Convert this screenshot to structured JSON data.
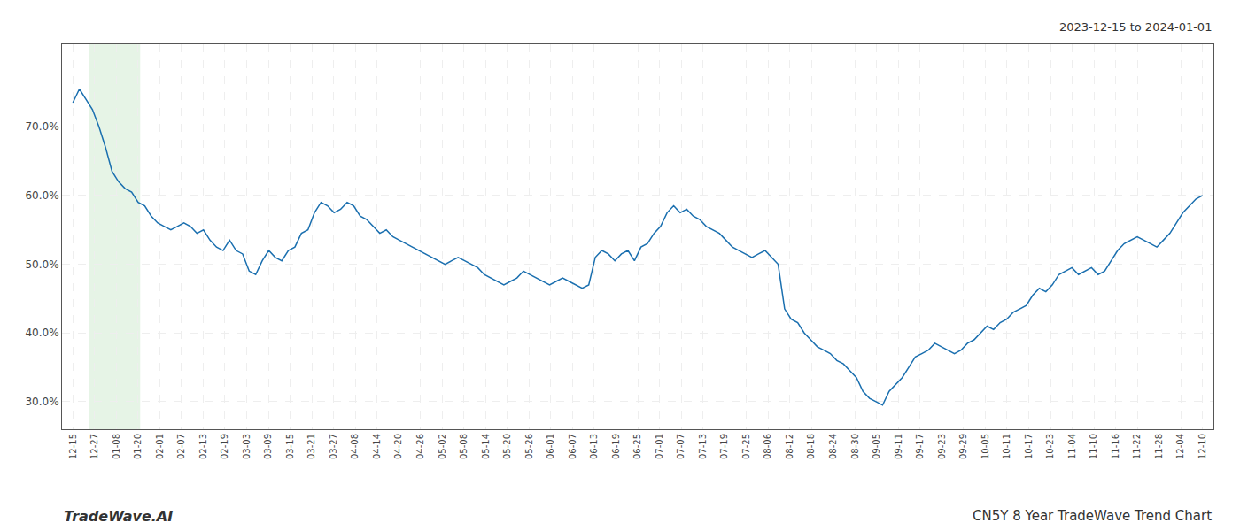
{
  "chart_data": {
    "type": "line",
    "title": "CN5Y 8 Year TradeWave Trend Chart",
    "subtitle": "2023-12-15 to 2024-01-01",
    "annotations": [
      {
        "text": "TradeWave.AI"
      }
    ],
    "color": "#1a6faf",
    "grid": true,
    "xlim": [
      -0.5,
      52.5
    ],
    "xticks": [
      {
        "value": 0,
        "label": "12-15"
      },
      {
        "value": 1,
        "label": "12-27"
      },
      {
        "value": 2,
        "label": "01-08"
      },
      {
        "value": 3,
        "label": "01-20"
      },
      {
        "value": 4,
        "label": "02-01"
      },
      {
        "value": 5,
        "label": "02-07"
      },
      {
        "value": 6,
        "label": "02-13"
      },
      {
        "value": 7,
        "label": "02-19"
      },
      {
        "value": 8,
        "label": "03-03"
      },
      {
        "value": 9,
        "label": "03-09"
      },
      {
        "value": 10,
        "label": "03-15"
      },
      {
        "value": 11,
        "label": "03-21"
      },
      {
        "value": 12,
        "label": "03-27"
      },
      {
        "value": 13,
        "label": "04-08"
      },
      {
        "value": 14,
        "label": "04-14"
      },
      {
        "value": 15,
        "label": "04-20"
      },
      {
        "value": 16,
        "label": "04-26"
      },
      {
        "value": 17,
        "label": "05-02"
      },
      {
        "value": 18,
        "label": "05-08"
      },
      {
        "value": 19,
        "label": "05-14"
      },
      {
        "value": 20,
        "label": "05-20"
      },
      {
        "value": 21,
        "label": "05-26"
      },
      {
        "value": 22,
        "label": "06-01"
      },
      {
        "value": 23,
        "label": "06-07"
      },
      {
        "value": 24,
        "label": "06-13"
      },
      {
        "value": 25,
        "label": "06-19"
      },
      {
        "value": 26,
        "label": "06-25"
      },
      {
        "value": 27,
        "label": "07-01"
      },
      {
        "value": 28,
        "label": "07-07"
      },
      {
        "value": 29,
        "label": "07-13"
      },
      {
        "value": 30,
        "label": "07-19"
      },
      {
        "value": 31,
        "label": "07-25"
      },
      {
        "value": 32,
        "label": "08-06"
      },
      {
        "value": 33,
        "label": "08-12"
      },
      {
        "value": 34,
        "label": "08-18"
      },
      {
        "value": 35,
        "label": "08-24"
      },
      {
        "value": 36,
        "label": "08-30"
      },
      {
        "value": 37,
        "label": "09-05"
      },
      {
        "value": 38,
        "label": "09-11"
      },
      {
        "value": 39,
        "label": "09-17"
      },
      {
        "value": 40,
        "label": "09-23"
      },
      {
        "value": 41,
        "label": "09-29"
      },
      {
        "value": 42,
        "label": "10-05"
      },
      {
        "value": 43,
        "label": "10-11"
      },
      {
        "value": 44,
        "label": "10-17"
      },
      {
        "value": 45,
        "label": "10-23"
      },
      {
        "value": 46,
        "label": "11-04"
      },
      {
        "value": 47,
        "label": "11-10"
      },
      {
        "value": 48,
        "label": "11-16"
      },
      {
        "value": 49,
        "label": "11-22"
      },
      {
        "value": 50,
        "label": "11-28"
      },
      {
        "value": 51,
        "label": "12-04"
      },
      {
        "value": 52,
        "label": "12-10"
      }
    ],
    "ylim": [
      26,
      82
    ],
    "yticks": [
      {
        "value": 30.0,
        "label": "30.0%"
      },
      {
        "value": 40.0,
        "label": "40.0%"
      },
      {
        "value": 50.0,
        "label": "50.0%"
      },
      {
        "value": 60.0,
        "label": "60.0%"
      },
      {
        "value": 70.0,
        "label": "70.0%"
      }
    ],
    "highlight": {
      "range": [
        0.75,
        3.1
      ],
      "color": "#c8e6c8"
    },
    "values": [
      73.5,
      75.5,
      74.0,
      72.5,
      70.0,
      67.0,
      63.5,
      62.0,
      61.0,
      60.5,
      59.0,
      58.5,
      57.0,
      56.0,
      55.5,
      55.0,
      55.5,
      56.0,
      55.5,
      54.5,
      55.0,
      53.5,
      52.5,
      52.0,
      53.5,
      52.0,
      51.5,
      49.0,
      48.5,
      50.5,
      52.0,
      51.0,
      50.5,
      52.0,
      52.5,
      54.5,
      55.0,
      57.5,
      59.0,
      58.5,
      57.5,
      58.0,
      59.0,
      58.5,
      57.0,
      56.5,
      55.5,
      54.5,
      55.0,
      54.0,
      53.5,
      53.0,
      52.5,
      52.0,
      51.5,
      51.0,
      50.5,
      50.0,
      50.5,
      51.0,
      50.5,
      50.0,
      49.5,
      48.5,
      48.0,
      47.5,
      47.0,
      47.5,
      48.0,
      49.0,
      48.5,
      48.0,
      47.5,
      47.0,
      47.5,
      48.0,
      47.5,
      47.0,
      46.5,
      47.0,
      51.0,
      52.0,
      51.5,
      50.5,
      51.5,
      52.0,
      50.5,
      52.5,
      53.0,
      54.5,
      55.5,
      57.5,
      58.5,
      57.5,
      58.0,
      57.0,
      56.5,
      55.5,
      55.0,
      54.5,
      53.5,
      52.5,
      52.0,
      51.5,
      51.0,
      51.5,
      52.0,
      51.0,
      50.0,
      43.5,
      42.0,
      41.5,
      40.0,
      39.0,
      38.0,
      37.5,
      37.0,
      36.0,
      35.5,
      34.5,
      33.5,
      31.5,
      30.5,
      30.0,
      29.5,
      31.5,
      32.5,
      33.5,
      35.0,
      36.5,
      37.0,
      37.5,
      38.5,
      38.0,
      37.5,
      37.0,
      37.5,
      38.5,
      39.0,
      40.0,
      41.0,
      40.5,
      41.5,
      42.0,
      43.0,
      43.5,
      44.0,
      45.5,
      46.5,
      46.0,
      47.0,
      48.5,
      49.0,
      49.5,
      48.5,
      49.0,
      49.5,
      48.5,
      49.0,
      50.5,
      52.0,
      53.0,
      53.5,
      54.0,
      53.5,
      53.0,
      52.5,
      53.5,
      54.5,
      56.0,
      57.5,
      58.5,
      59.5,
      60.0
    ]
  }
}
